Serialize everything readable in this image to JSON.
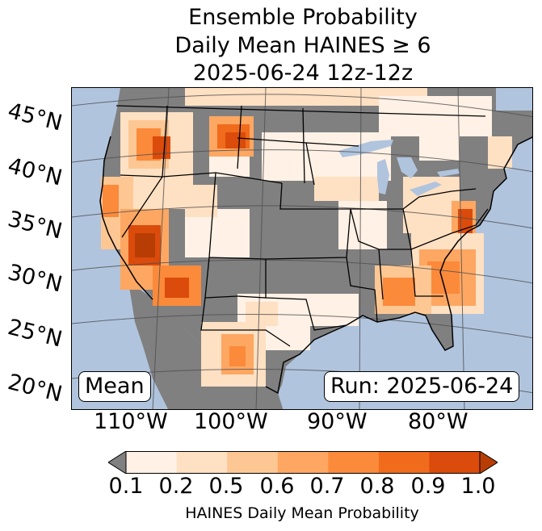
{
  "title": {
    "line1": "Ensemble Probability",
    "line2": "Daily Mean HAINES ≥ 6",
    "line3": "2025-06-24 12z-12z"
  },
  "map": {
    "lat_labels": [
      "45°N",
      "40°N",
      "35°N",
      "30°N",
      "25°N",
      "20°N"
    ],
    "lon_labels": [
      "110°W",
      "100°W",
      "90°W",
      "80°W"
    ],
    "mean_label": "Mean",
    "run_label": "Run: 2025-06-24",
    "colors": {
      "ocean": "#b0c4de",
      "land_low": "#808080",
      "state_lines": "#000000",
      "grid": "#4d4d4d"
    }
  },
  "colorbar": {
    "ticks": [
      "0.1",
      "0.2",
      "0.5",
      "0.6",
      "0.7",
      "0.8",
      "0.9",
      "1.0"
    ],
    "colors": [
      "#fff1e5",
      "#fee0c3",
      "#fdc794",
      "#fda762",
      "#fb8a3b",
      "#f06b1c",
      "#db4b0b",
      "#b83d05"
    ],
    "under_color": "#808080",
    "label": "HAINES Daily Mean Probability"
  }
}
